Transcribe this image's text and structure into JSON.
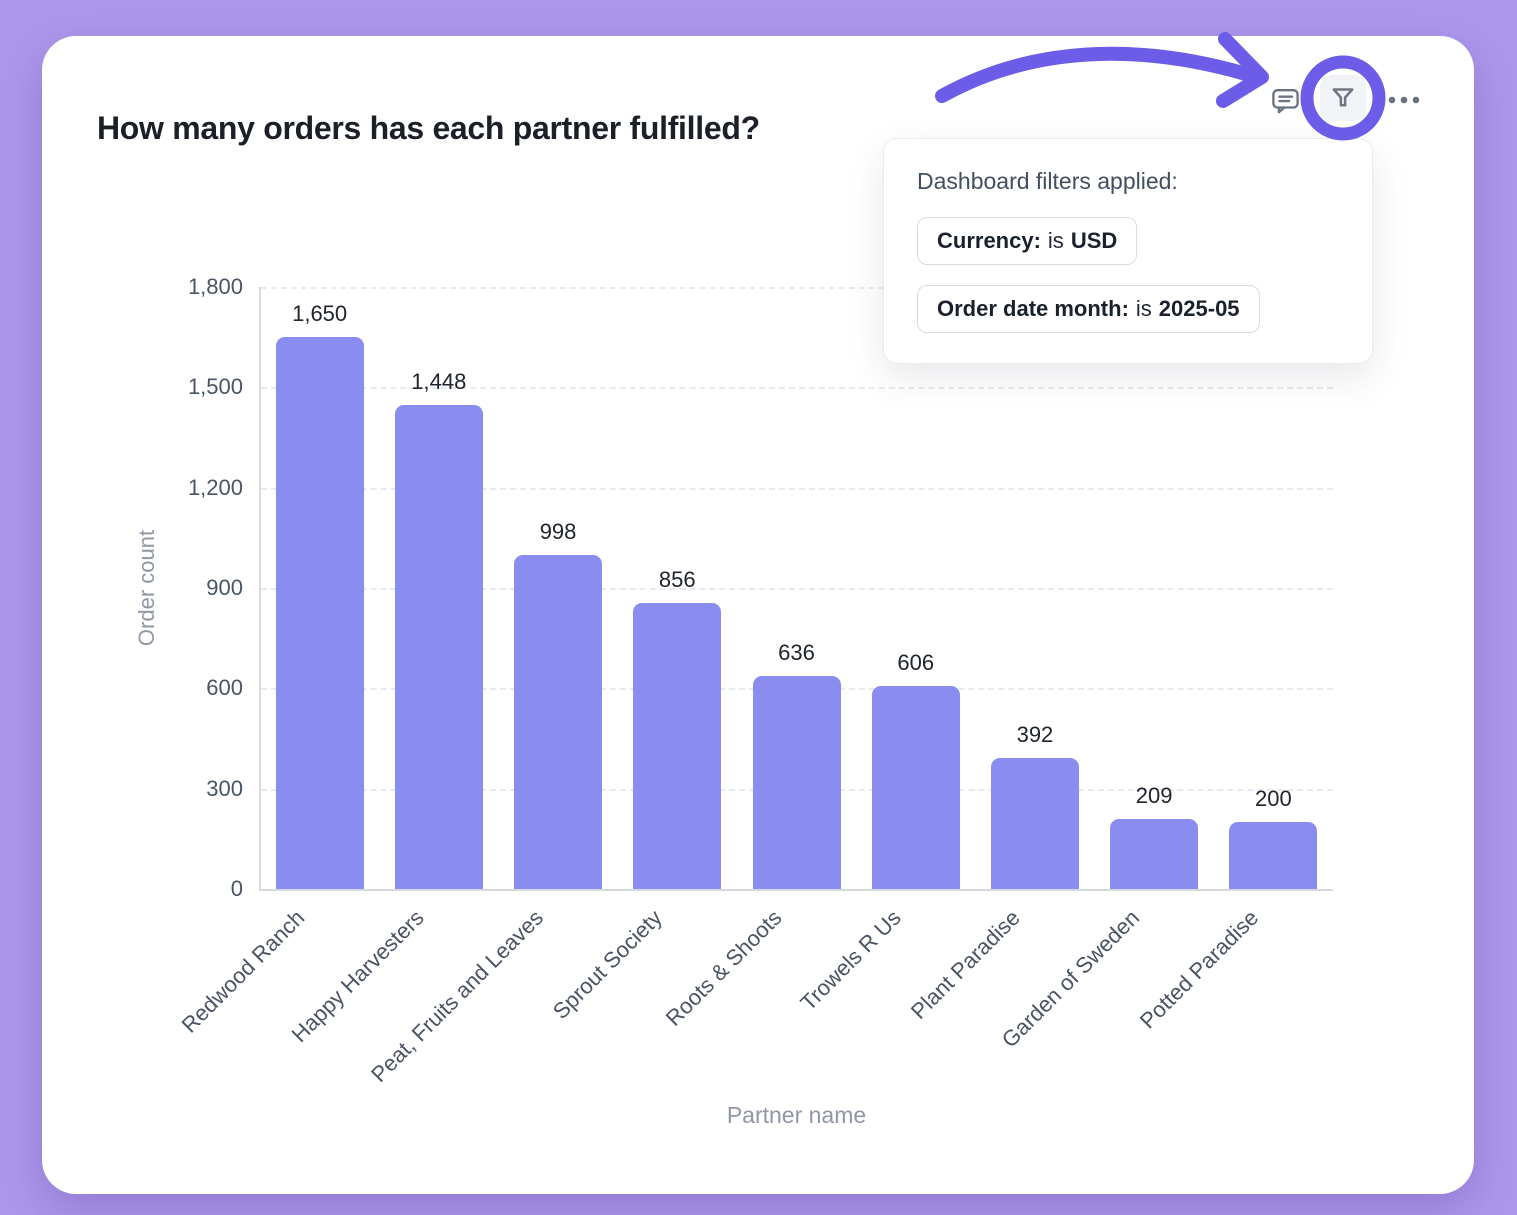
{
  "page": {
    "background_color": "#ad97ec",
    "accent_color": "#6c5ce7"
  },
  "card": {
    "title": "How many orders has each partner fulfilled?"
  },
  "toolbar": {
    "comment_icon": "comment-icon",
    "filter_icon": "filter-icon",
    "more_icon": "more-options-icon"
  },
  "popover": {
    "title": "Dashboard filters applied:",
    "chips": [
      {
        "field": "Currency:",
        "op": "is",
        "value": "USD"
      },
      {
        "field": "Order date month:",
        "op": "is",
        "value": "2025-05"
      }
    ]
  },
  "chart_data": {
    "type": "bar",
    "title": "How many orders has each partner fulfilled?",
    "xlabel": "Partner name",
    "ylabel": "Order count",
    "categories": [
      "Redwood Ranch",
      "Happy Harvesters",
      "Peat, Fruits and Leaves",
      "Sprout Society",
      "Roots & Shoots",
      "Trowels R Us",
      "Plant Paradise",
      "Garden of Sweden",
      "Potted Paradise"
    ],
    "values": [
      1650,
      1448,
      998,
      856,
      636,
      606,
      392,
      209,
      200
    ],
    "value_labels": [
      "1,650",
      "1,448",
      "998",
      "856",
      "636",
      "606",
      "392",
      "209",
      "200"
    ],
    "ylim": [
      0,
      1800
    ],
    "yticks": [
      0,
      300,
      600,
      900,
      1200,
      1500,
      1800
    ],
    "ytick_labels": [
      "0",
      "300",
      "600",
      "900",
      "1,200",
      "1,500",
      "1,800"
    ],
    "bar_color": "#8a8cef",
    "grid": true,
    "legend": false
  }
}
